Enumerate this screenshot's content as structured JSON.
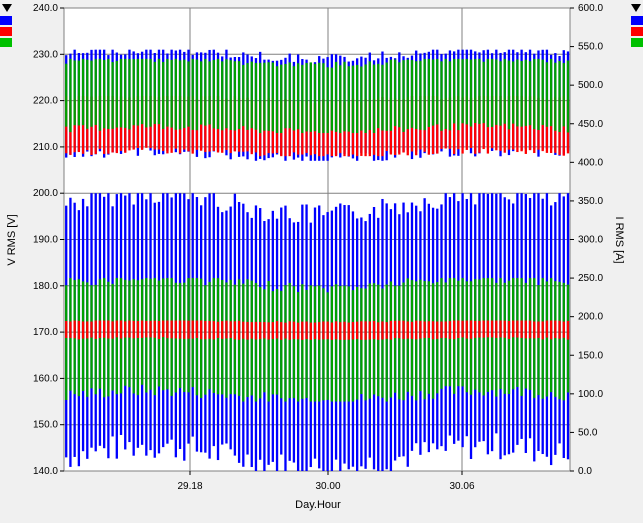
{
  "chart_data": {
    "type": "line",
    "xlabel": "Day.Hour",
    "ylabel_left": "V RMS [V]",
    "ylabel_right": "I RMS [A]",
    "x_ticks": [
      "29.18",
      "30.00",
      "30.06"
    ],
    "ylim_left": [
      140,
      240
    ],
    "ylim_right": [
      0,
      600
    ],
    "yticks_left": [
      "140.0",
      "150.0",
      "160.0",
      "170.0",
      "180.0",
      "190.0",
      "200.0",
      "210.0",
      "220.0",
      "230.0",
      "240.0"
    ],
    "yticks_right": [
      "0.0",
      "50.0",
      "100.0",
      "150.0",
      "200.0",
      "250.0",
      "300.0",
      "350.0",
      "400.0",
      "450.0",
      "500.0",
      "550.0",
      "600.0"
    ],
    "grid": true,
    "series": [
      {
        "axis": "left",
        "color": "#0000ff",
        "envelope": {
          "min": 207,
          "max": 231
        }
      },
      {
        "axis": "left",
        "color": "#ff0000",
        "envelope": {
          "min": 208,
          "max": 221
        }
      },
      {
        "axis": "left",
        "color": "#00a000",
        "envelope": {
          "min": 213,
          "max": 229
        }
      },
      {
        "axis": "right",
        "color": "#0000ff",
        "envelope": {
          "min": 0,
          "max": 360
        }
      },
      {
        "axis": "right",
        "color": "#ff0000",
        "envelope": {
          "min": 170,
          "max": 195
        }
      },
      {
        "axis": "right",
        "color": "#00a000",
        "envelope": {
          "min": 90,
          "max": 250
        }
      }
    ]
  },
  "legend": {
    "left": {
      "menu_icon": "dropdown-arrow-icon",
      "colors": [
        "#0000ff",
        "#ff0000",
        "#00c000"
      ]
    },
    "right": {
      "menu_icon": "dropdown-arrow-icon",
      "colors": [
        "#0000ff",
        "#ff0000",
        "#00c000"
      ]
    }
  }
}
